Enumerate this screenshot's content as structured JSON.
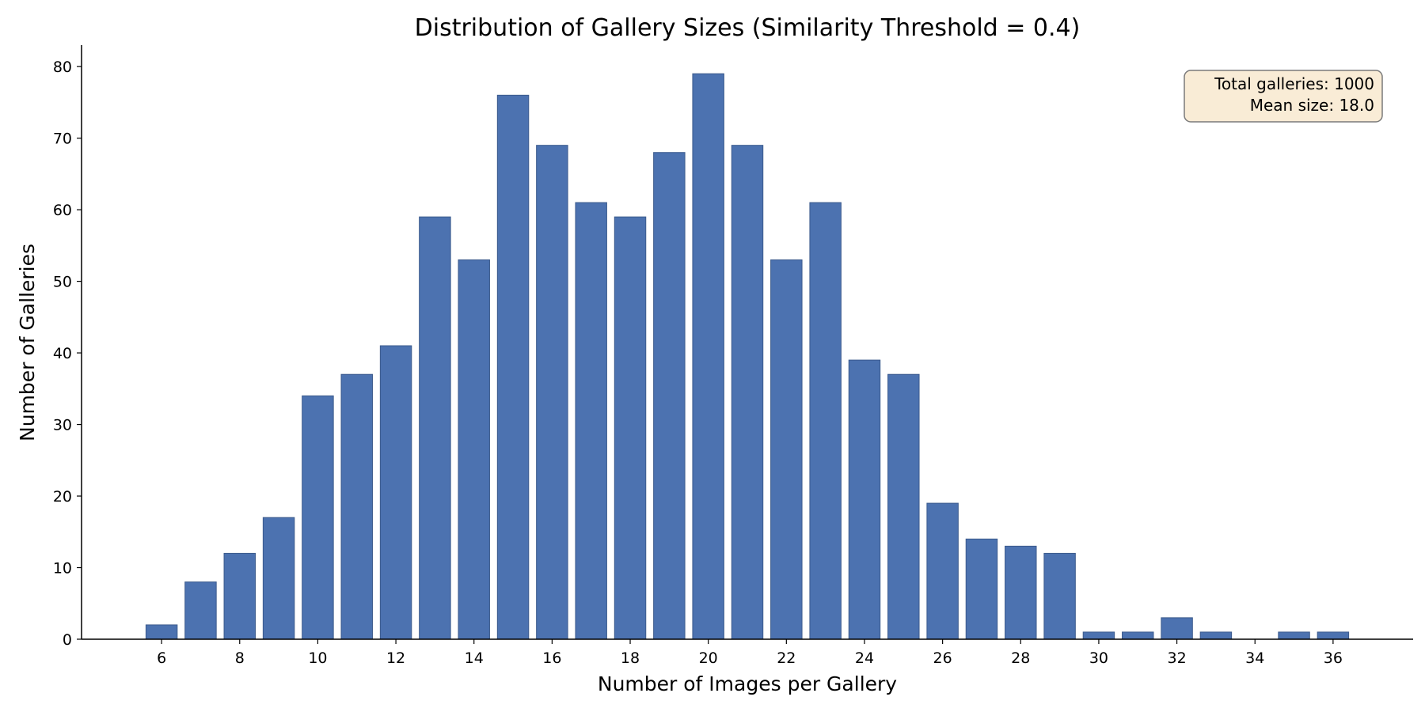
{
  "chart_data": {
    "type": "bar",
    "title": "Distribution of Gallery Sizes (Similarity Threshold = 0.4)",
    "xlabel": "Number of Images per Gallery",
    "ylabel": "Number of Galleries",
    "x": [
      6,
      7,
      8,
      9,
      10,
      11,
      12,
      13,
      14,
      15,
      16,
      17,
      18,
      19,
      20,
      21,
      22,
      23,
      24,
      25,
      26,
      27,
      28,
      29,
      30,
      31,
      32,
      33,
      35,
      36
    ],
    "values": [
      2,
      8,
      12,
      17,
      34,
      37,
      41,
      59,
      53,
      76,
      69,
      61,
      59,
      68,
      79,
      69,
      53,
      61,
      39,
      37,
      19,
      14,
      13,
      12,
      1,
      1,
      3,
      1,
      1,
      1
    ],
    "xlim": [
      3.95,
      38.05
    ],
    "ylim": [
      0,
      83
    ],
    "xticks": [
      6,
      8,
      10,
      12,
      14,
      16,
      18,
      20,
      22,
      24,
      26,
      28,
      30,
      32,
      34,
      36
    ],
    "yticks": [
      0,
      10,
      20,
      30,
      40,
      50,
      60,
      70,
      80
    ],
    "bar_color": "#4c72b0",
    "bar_edge_color": "#3b5a8c",
    "grid": false,
    "annotation": {
      "lines": [
        "Total galleries: 1000",
        "Mean size: 18.0"
      ],
      "placement": "top-right",
      "background": "#f9ecd6",
      "border": "#7a7a7a"
    }
  }
}
